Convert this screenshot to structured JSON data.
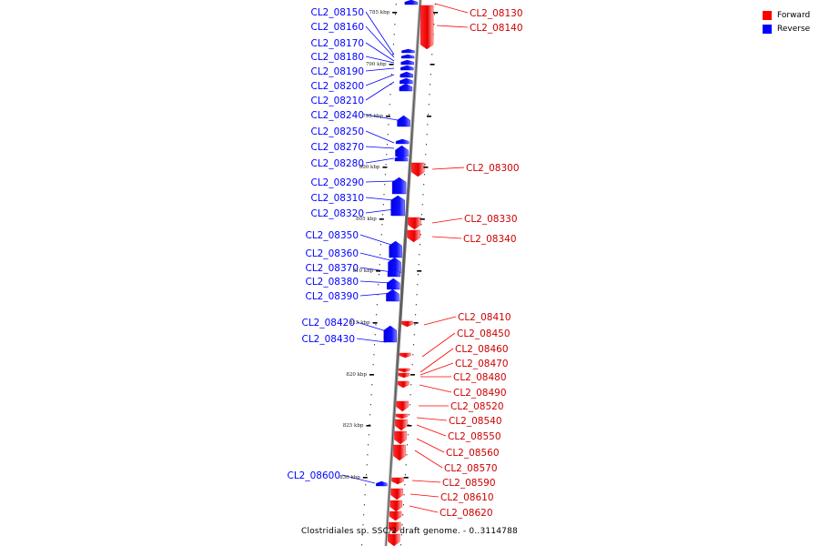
{
  "title": "Clostridiales sp. SSC/2 draft genome. - 0..3114788",
  "legend": {
    "forward_label": "Forward",
    "reverse_label": "Reverse",
    "forward_color": "#ff0000",
    "reverse_color": "#0000ff"
  },
  "kbp_labels": [
    "785 kbp",
    "790 kbp",
    "795 kbp",
    "800 kbp",
    "805 kbp",
    "810 kbp",
    "815 kbp",
    "820 kbp",
    "825 kbp",
    "830 kbp"
  ],
  "reverse_genes": [
    "CL2_08150",
    "CL2_08160",
    "CL2_08170",
    "CL2_08180",
    "CL2_08190",
    "CL2_08200",
    "CL2_08210",
    "CL2_08240",
    "CL2_08250",
    "CL2_08270",
    "CL2_08280",
    "CL2_08290",
    "CL2_08310",
    "CL2_08320",
    "CL2_08350",
    "CL2_08360",
    "CL2_08370",
    "CL2_08380",
    "CL2_08390",
    "CL2_08420",
    "CL2_08430",
    "CL2_08600"
  ],
  "forward_genes": [
    "CL2_08130",
    "CL2_08140",
    "CL2_08300",
    "CL2_08330",
    "CL2_08340",
    "CL2_08410",
    "CL2_08450",
    "CL2_08460",
    "CL2_08470",
    "CL2_08480",
    "CL2_08490",
    "CL2_08520",
    "CL2_08540",
    "CL2_08550",
    "CL2_08560",
    "CL2_08570",
    "CL2_08590",
    "CL2_08610",
    "CL2_08620"
  ]
}
